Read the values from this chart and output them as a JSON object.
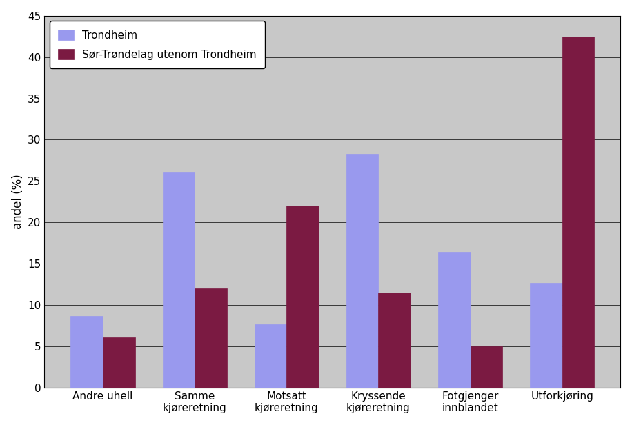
{
  "categories": [
    "Andre uhell",
    "Samme\nkjøreretning",
    "Motsatt\nkjøreretning",
    "Kryssende\nkjøreretning",
    "Fotgjenger\ninnblandet",
    "Utforkjøring"
  ],
  "trondheim": [
    8.7,
    26.0,
    7.7,
    28.3,
    16.4,
    12.7
  ],
  "sor_trondelag": [
    6.1,
    12.0,
    22.0,
    11.5,
    5.0,
    42.5
  ],
  "trondheim_color": "#9999ee",
  "sor_trondelag_color": "#7b1a42",
  "trondheim_label": "Trondheim",
  "sor_trondelag_label": "Sør-Trøndelag utenom Trondheim",
  "ylabel": "andel (%)",
  "ylim": [
    0,
    45
  ],
  "yticks": [
    0,
    5,
    10,
    15,
    20,
    25,
    30,
    35,
    40,
    45
  ],
  "fig_bg_color": "#ffffff",
  "plot_bg_color": "#c8c8c8",
  "grid_color": "#000000",
  "bar_width": 0.35,
  "figsize": [
    9.16,
    6.16
  ],
  "dpi": 100
}
